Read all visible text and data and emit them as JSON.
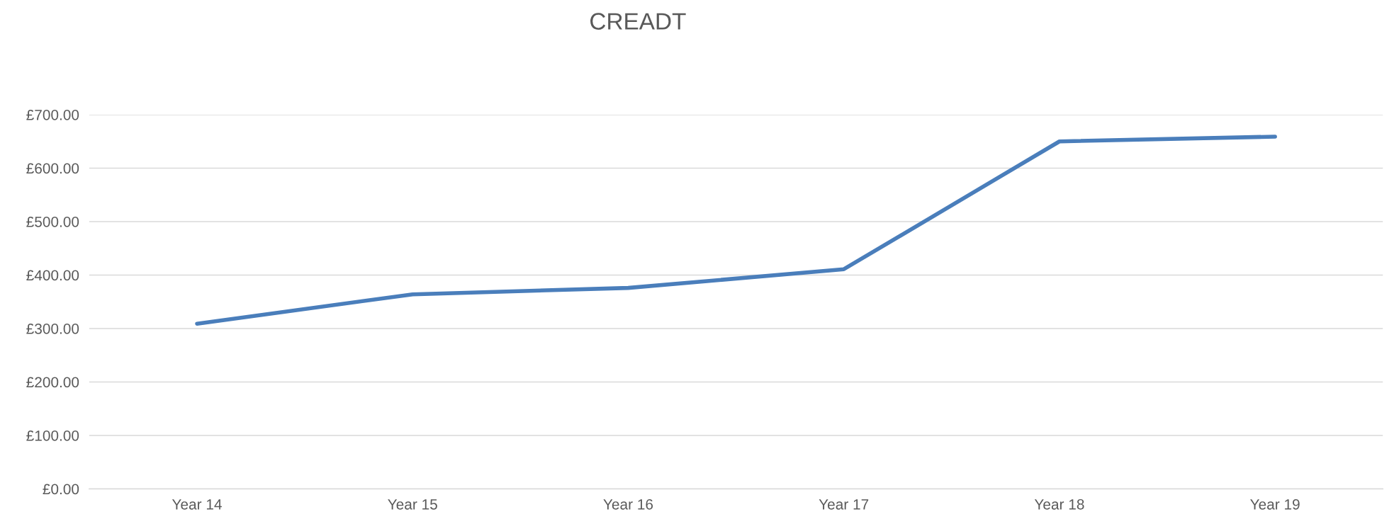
{
  "chart_data": {
    "type": "line",
    "title": "CREADT",
    "categories": [
      "Year 14",
      "Year 15",
      "Year 16",
      "Year 17",
      "Year 18",
      "Year 19"
    ],
    "series": [
      {
        "color": "#4a7ebb",
        "values": [
          309,
          364,
          376,
          411,
          650,
          659
        ]
      }
    ],
    "ylim": [
      0,
      700
    ],
    "yticks": [
      {
        "value": 0,
        "label": "£0.00"
      },
      {
        "value": 100,
        "label": "£100.00"
      },
      {
        "value": 200,
        "label": "£200.00"
      },
      {
        "value": 300,
        "label": "£300.00"
      },
      {
        "value": 400,
        "label": "£400.00"
      },
      {
        "value": 500,
        "label": "£500.00"
      },
      {
        "value": 600,
        "label": "£600.00"
      },
      {
        "value": 700,
        "label": "£700.00"
      }
    ],
    "grid": "y",
    "legend": false,
    "marker": "none",
    "line_style": "solid"
  }
}
